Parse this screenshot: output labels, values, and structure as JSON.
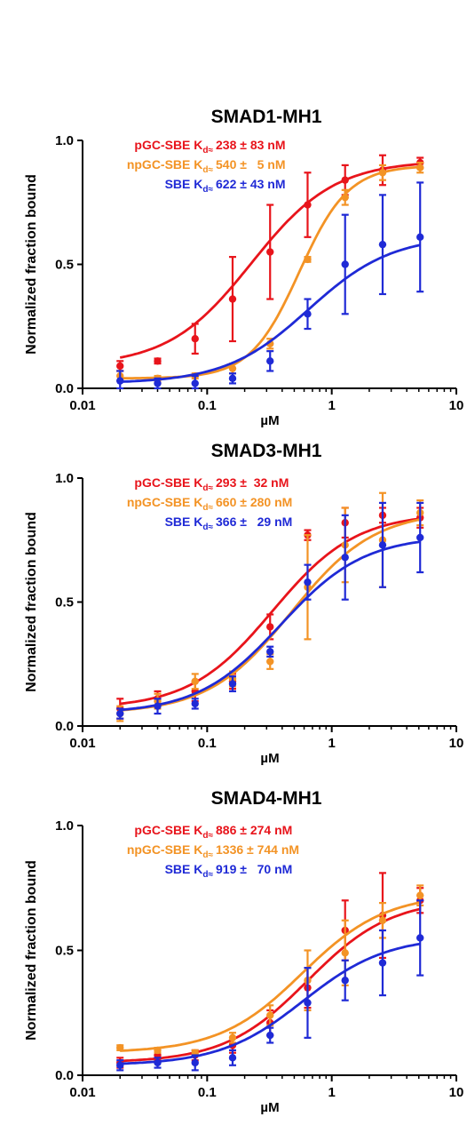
{
  "colors": {
    "red": "#e8141b",
    "orange": "#f39325",
    "blue": "#1f2ad6",
    "axis": "#000000"
  },
  "chart_data": [
    {
      "type": "scatter",
      "title": "SMAD1-MH1",
      "xlabel": "µM",
      "ylabel": "Normalized fraction bound",
      "xscale": "log",
      "xlim": [
        0.01,
        10
      ],
      "ylim": [
        0,
        1
      ],
      "xticks": [
        "0.01",
        "0.1",
        "1",
        "10"
      ],
      "yticks": [
        "0.0",
        "0.5",
        "1.0"
      ],
      "legend_position": "top-left",
      "x": [
        0.02,
        0.04,
        0.08,
        0.16,
        0.32,
        0.64,
        1.28,
        2.56,
        5.12
      ],
      "series": [
        {
          "name": "pGC-SBE",
          "kd_label": "K",
          "kd_sub": "d≈",
          "kd_text": "238 ± 83 nM",
          "color": "red",
          "y": [
            0.09,
            0.11,
            0.2,
            0.36,
            0.55,
            0.74,
            0.84,
            0.88,
            0.91
          ],
          "err": [
            0.02,
            0.01,
            0.06,
            0.17,
            0.19,
            0.13,
            0.06,
            0.06,
            0.02
          ]
        },
        {
          "name": "npGC-SBE",
          "kd_label": "K",
          "kd_sub": "d≈",
          "kd_text": "540 ±   5 nM",
          "color": "orange",
          "y": [
            0.05,
            0.04,
            0.05,
            0.08,
            0.18,
            0.52,
            0.77,
            0.87,
            0.89
          ],
          "err": [
            0.02,
            0.01,
            0.01,
            0.02,
            0.02,
            0.01,
            0.03,
            0.03,
            0.02
          ]
        },
        {
          "name": "SBE",
          "kd_label": "K",
          "kd_sub": "d≈",
          "kd_text": "622 ± 43 nM",
          "color": "blue",
          "y": [
            0.03,
            0.02,
            0.02,
            0.04,
            0.11,
            0.3,
            0.5,
            0.58,
            0.61
          ],
          "err": [
            0.04,
            0.02,
            0.03,
            0.02,
            0.04,
            0.06,
            0.2,
            0.2,
            0.22
          ]
        }
      ]
    },
    {
      "type": "scatter",
      "title": "SMAD3-MH1",
      "xlabel": "µM",
      "ylabel": "Normalized fraction bound",
      "xscale": "log",
      "xlim": [
        0.01,
        10
      ],
      "ylim": [
        0,
        1
      ],
      "xticks": [
        "0.01",
        "0.1",
        "1",
        "10"
      ],
      "yticks": [
        "0.0",
        "0.5",
        "1.0"
      ],
      "legend_position": "top-left",
      "x": [
        0.02,
        0.04,
        0.08,
        0.16,
        0.32,
        0.64,
        1.28,
        2.56,
        5.12
      ],
      "series": [
        {
          "name": "pGC-SBE",
          "kd_label": "K",
          "kd_sub": "d≈",
          "kd_text": "293 ±  32 nM",
          "color": "red",
          "y": [
            0.07,
            0.11,
            0.14,
            0.18,
            0.4,
            0.77,
            0.82,
            0.85,
            0.84
          ],
          "err": [
            0.04,
            0.03,
            0.04,
            0.03,
            0.05,
            0.02,
            0.06,
            0.03,
            0.04
          ]
        },
        {
          "name": "npGC-SBE",
          "kd_label": "K",
          "kd_sub": "d≈",
          "kd_text": "660 ± 280 nM",
          "color": "orange",
          "y": [
            0.05,
            0.1,
            0.18,
            0.19,
            0.26,
            0.56,
            0.73,
            0.75,
            0.86
          ],
          "err": [
            0.03,
            0.03,
            0.03,
            0.03,
            0.03,
            0.21,
            0.15,
            0.19,
            0.05
          ]
        },
        {
          "name": "SBE",
          "kd_label": "K",
          "kd_sub": "d≈",
          "kd_text": "366 ±   29 nM",
          "color": "blue",
          "y": [
            0.05,
            0.08,
            0.09,
            0.17,
            0.3,
            0.58,
            0.68,
            0.73,
            0.76
          ],
          "err": [
            0.02,
            0.03,
            0.02,
            0.03,
            0.02,
            0.07,
            0.17,
            0.17,
            0.14
          ]
        }
      ]
    },
    {
      "type": "scatter",
      "title": "SMAD4-MH1",
      "xlabel": "µM",
      "ylabel": "Normalized fraction bound",
      "xscale": "log",
      "xlim": [
        0.01,
        10
      ],
      "ylim": [
        0,
        1
      ],
      "xticks": [
        "0.01",
        "0.1",
        "1",
        "10"
      ],
      "yticks": [
        "0.0",
        "0.5",
        "1.0"
      ],
      "legend_position": "top-left",
      "x": [
        0.02,
        0.04,
        0.08,
        0.16,
        0.32,
        0.64,
        1.28,
        2.56,
        5.12
      ],
      "series": [
        {
          "name": "pGC-SBE",
          "kd_label": "K",
          "kd_sub": "d≈",
          "kd_text": "886 ± 274 nM",
          "color": "red",
          "y": [
            0.05,
            0.08,
            0.08,
            0.12,
            0.21,
            0.35,
            0.58,
            0.64,
            0.7
          ],
          "err": [
            0.02,
            0.02,
            0.02,
            0.03,
            0.05,
            0.08,
            0.12,
            0.17,
            0.05
          ]
        },
        {
          "name": "npGC-SBE",
          "kd_label": "K",
          "kd_sub": "d≈",
          "kd_text": "1336 ± 744 nM",
          "color": "orange",
          "y": [
            0.11,
            0.1,
            0.09,
            0.15,
            0.24,
            0.38,
            0.49,
            0.62,
            0.72
          ],
          "err": [
            0.01,
            0.01,
            0.01,
            0.02,
            0.04,
            0.12,
            0.13,
            0.07,
            0.04
          ]
        },
        {
          "name": "SBE",
          "kd_label": "K",
          "kd_sub": "d≈",
          "kd_text": "919 ±   70 nM",
          "color": "blue",
          "y": [
            0.04,
            0.05,
            0.05,
            0.07,
            0.16,
            0.29,
            0.38,
            0.45,
            0.55
          ],
          "err": [
            0.02,
            0.02,
            0.03,
            0.03,
            0.03,
            0.14,
            0.08,
            0.13,
            0.15
          ]
        }
      ]
    }
  ]
}
